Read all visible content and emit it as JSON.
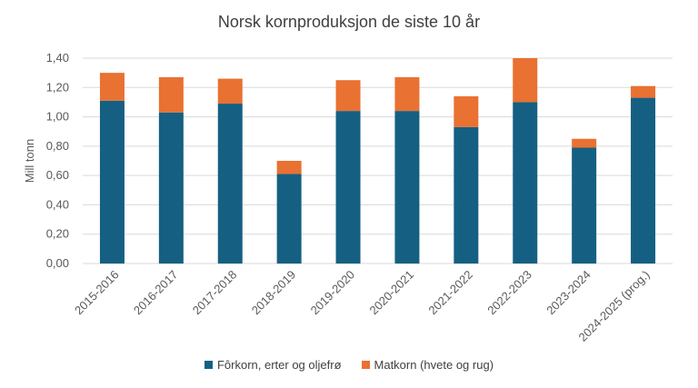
{
  "chart_data": {
    "type": "bar",
    "stacked": true,
    "title": "Norsk kornproduksjon de siste 10 år",
    "ylabel": "Mill tonn",
    "xlabel": "",
    "ylim": [
      0,
      1.4
    ],
    "yticks": [
      "0,00",
      "0,20",
      "0,40",
      "0,60",
      "0,80",
      "1,00",
      "1,20",
      "1,40"
    ],
    "grid": true,
    "legend_position": "bottom",
    "categories": [
      "2015-2016",
      "2016-2017",
      "2017-2018",
      "2018-2019",
      "2019-2020",
      "2020-2021",
      "2021-2022",
      "2022-2023",
      "2023-2024",
      "2024-2025 (prog.)"
    ],
    "series": [
      {
        "name": "Fôrkorn, erter og oljefrø",
        "color": "#156082",
        "values": [
          1.11,
          1.03,
          1.09,
          0.61,
          1.04,
          1.04,
          0.93,
          1.1,
          0.79,
          1.13
        ]
      },
      {
        "name": "Matkorn (hvete og rug)",
        "color": "#E97132",
        "values": [
          0.19,
          0.24,
          0.17,
          0.09,
          0.21,
          0.23,
          0.21,
          0.3,
          0.06,
          0.08
        ]
      }
    ]
  }
}
